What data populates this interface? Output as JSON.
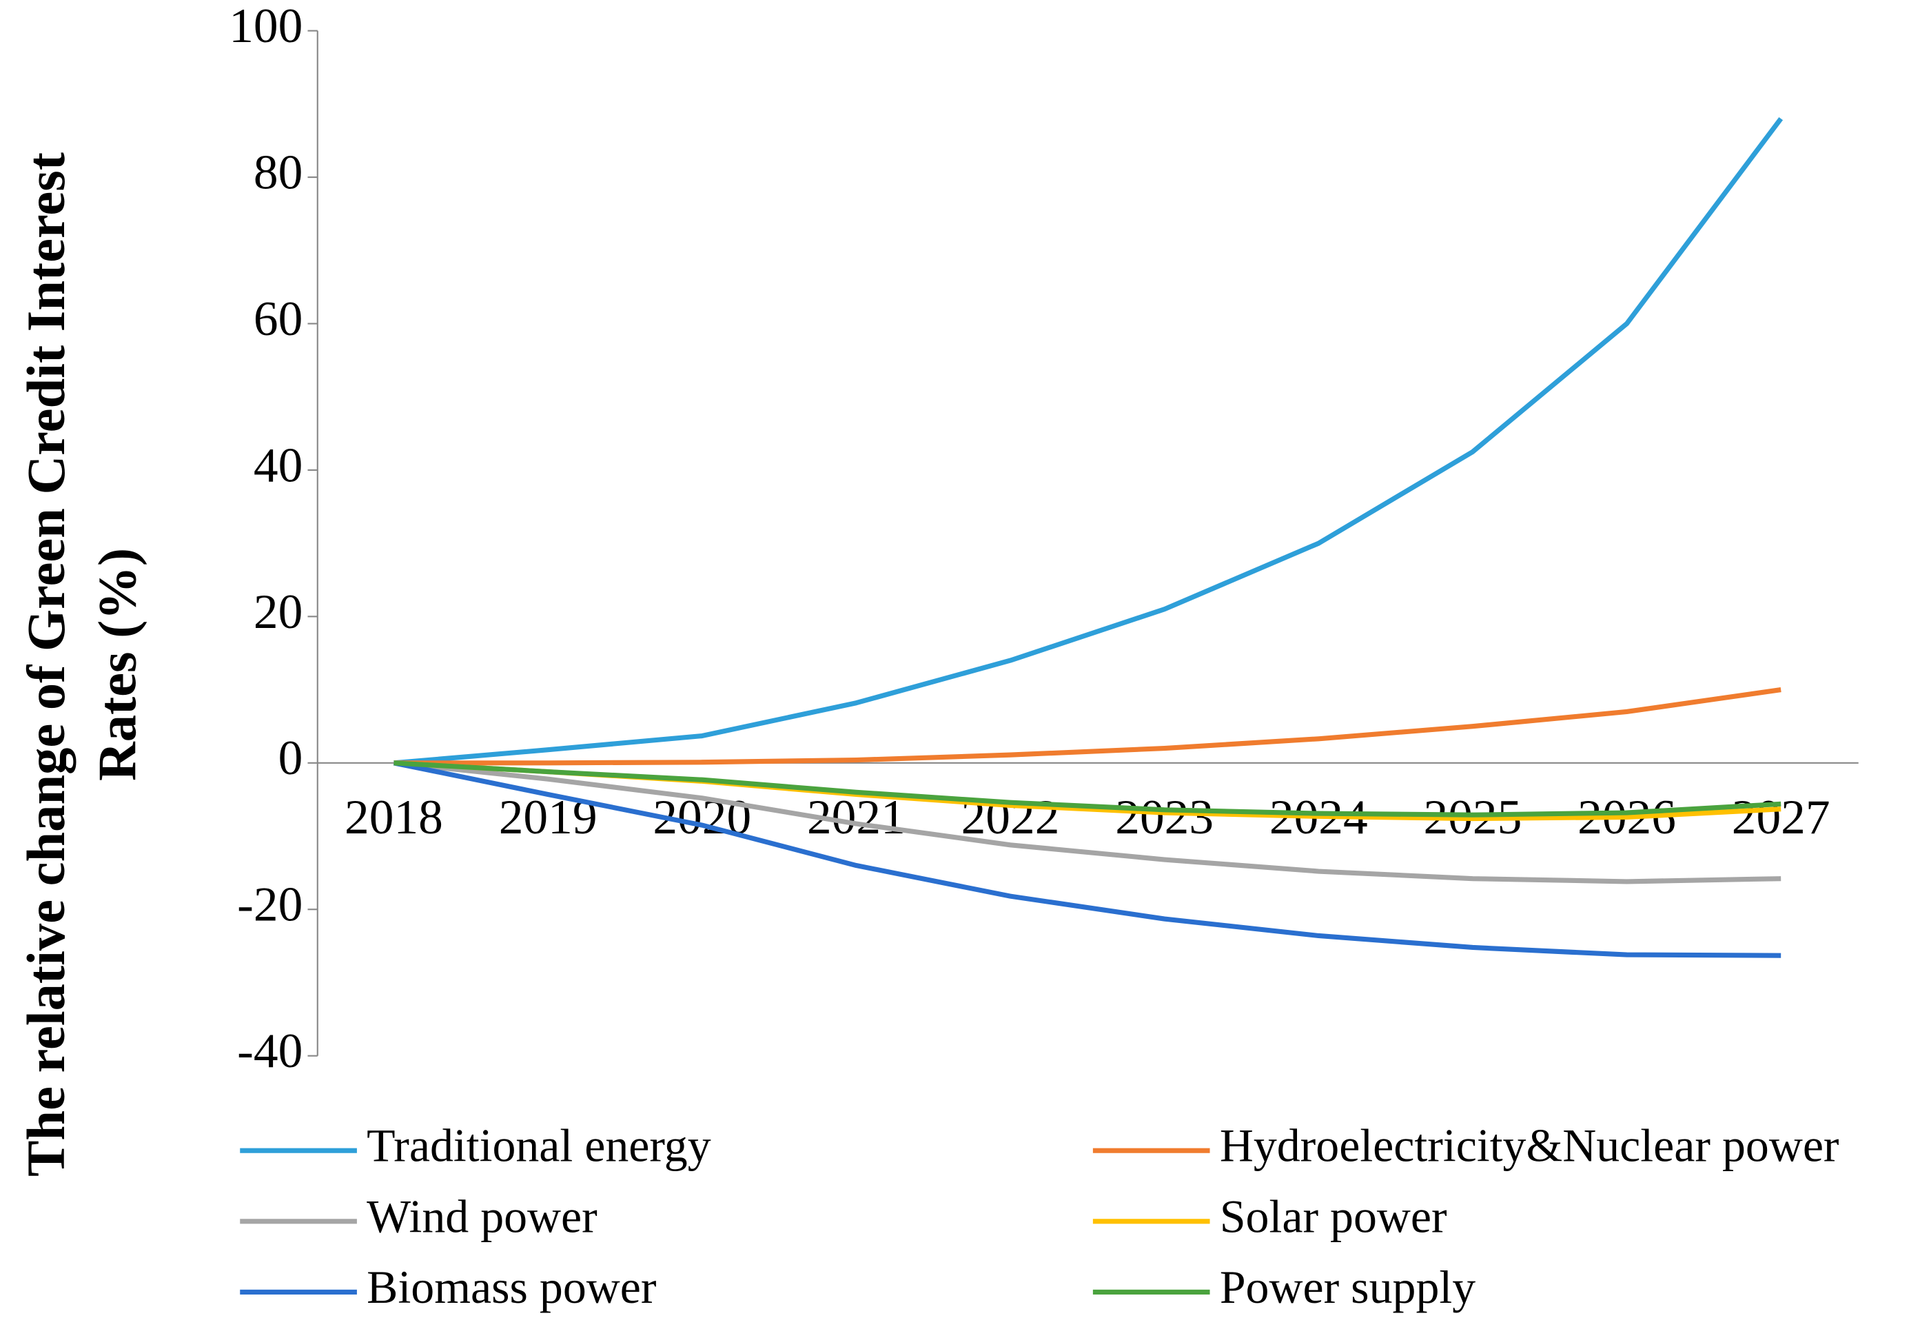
{
  "chart_data": {
    "type": "line",
    "ylabel": [
      "The  relative change of Green Credit Interest",
      "Rates  (%)"
    ],
    "categories": [
      "2018",
      "2019",
      "2020",
      "2021",
      "2022",
      "2023",
      "2024",
      "2025",
      "2026",
      "2027"
    ],
    "series": [
      {
        "name": "Traditional energy",
        "color": "#2e9fd9",
        "values": [
          0,
          1.8,
          3.7,
          8.2,
          14,
          21,
          30,
          42.5,
          60,
          88
        ]
      },
      {
        "name": "Hydroelectricity&Nuclear power",
        "color": "#f07c2e",
        "values": [
          0,
          0,
          0.1,
          0.4,
          1.1,
          2,
          3.3,
          5,
          7,
          10
        ]
      },
      {
        "name": "Wind power",
        "color": "#a5a5a5",
        "values": [
          0,
          -2.2,
          -4.8,
          -8.3,
          -11.2,
          -13.2,
          -14.8,
          -15.8,
          -16.2,
          -15.8
        ]
      },
      {
        "name": "Solar power",
        "color": "#ffc000",
        "values": [
          0,
          -1.2,
          -2.5,
          -4.3,
          -5.8,
          -6.8,
          -7.3,
          -7.6,
          -7.4,
          -6.3
        ]
      },
      {
        "name": "Biomass power",
        "color": "#2a6fcf",
        "values": [
          0,
          -4.3,
          -8.5,
          -14,
          -18.2,
          -21.3,
          -23.6,
          -25.2,
          -26.2,
          -26.3
        ]
      },
      {
        "name": "Power supply",
        "color": "#4aa33e",
        "values": [
          0,
          -1.2,
          -2.3,
          -4,
          -5.4,
          -6.4,
          -6.9,
          -7.1,
          -6.8,
          -5.6
        ]
      }
    ],
    "ylim": [
      -40,
      100
    ],
    "yticks": [
      -40,
      -20,
      0,
      20,
      40,
      60,
      80,
      100
    ]
  }
}
